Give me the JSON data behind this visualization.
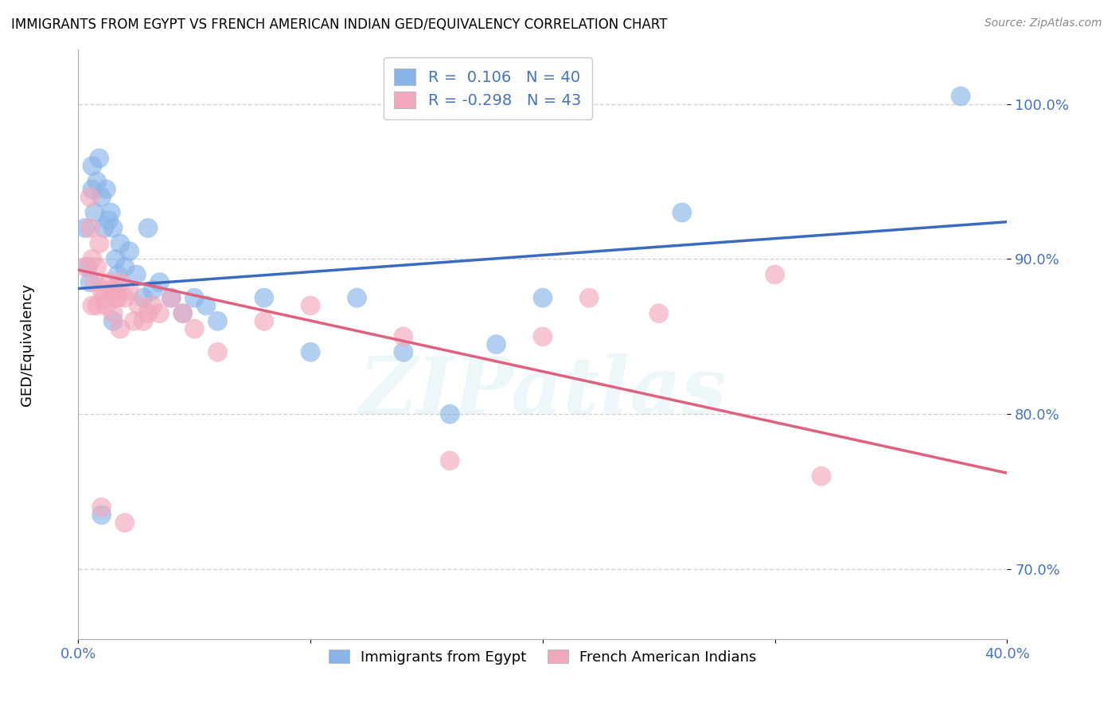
{
  "title": "IMMIGRANTS FROM EGYPT VS FRENCH AMERICAN INDIAN GED/EQUIVALENCY CORRELATION CHART",
  "source": "Source: ZipAtlas.com",
  "ylabel": "GED/Equivalency",
  "xlim": [
    0.0,
    0.4
  ],
  "ylim": [
    0.655,
    1.035
  ],
  "yticks": [
    0.7,
    0.8,
    0.9,
    1.0
  ],
  "yticklabels": [
    "70.0%",
    "80.0%",
    "90.0%",
    "100.0%"
  ],
  "blue_color": "#89b4e8",
  "pink_color": "#f2a8bc",
  "blue_line_color": "#3b6abf",
  "pink_line_color": "#e06080",
  "legend_r_blue": "0.106",
  "legend_n_blue": "40",
  "legend_r_pink": "-0.298",
  "legend_n_pink": "43",
  "legend_label_blue": "Immigrants from Egypt",
  "legend_label_pink": "French American Indians",
  "blue_scatter_x": [
    0.003,
    0.004,
    0.006,
    0.007,
    0.008,
    0.009,
    0.01,
    0.011,
    0.012,
    0.013,
    0.014,
    0.015,
    0.016,
    0.017,
    0.018,
    0.02,
    0.022,
    0.025,
    0.028,
    0.03,
    0.032,
    0.035,
    0.04,
    0.045,
    0.05,
    0.055,
    0.06,
    0.08,
    0.1,
    0.12,
    0.14,
    0.16,
    0.18,
    0.2,
    0.26,
    0.005,
    0.01,
    0.015,
    0.38,
    0.006
  ],
  "blue_scatter_y": [
    0.92,
    0.895,
    0.945,
    0.93,
    0.95,
    0.965,
    0.94,
    0.92,
    0.945,
    0.925,
    0.93,
    0.92,
    0.9,
    0.89,
    0.91,
    0.895,
    0.905,
    0.89,
    0.875,
    0.92,
    0.88,
    0.885,
    0.875,
    0.865,
    0.875,
    0.87,
    0.86,
    0.875,
    0.84,
    0.875,
    0.84,
    0.8,
    0.845,
    0.875,
    0.93,
    0.885,
    0.735,
    0.86,
    1.005,
    0.96
  ],
  "pink_scatter_x": [
    0.003,
    0.005,
    0.006,
    0.007,
    0.008,
    0.009,
    0.01,
    0.011,
    0.012,
    0.013,
    0.014,
    0.015,
    0.016,
    0.017,
    0.018,
    0.02,
    0.022,
    0.024,
    0.026,
    0.028,
    0.03,
    0.032,
    0.035,
    0.04,
    0.045,
    0.05,
    0.06,
    0.08,
    0.1,
    0.14,
    0.16,
    0.2,
    0.22,
    0.25,
    0.3,
    0.32,
    0.005,
    0.01,
    0.015,
    0.018,
    0.008,
    0.006,
    0.02
  ],
  "pink_scatter_y": [
    0.895,
    0.92,
    0.9,
    0.885,
    0.895,
    0.91,
    0.88,
    0.875,
    0.87,
    0.885,
    0.88,
    0.865,
    0.875,
    0.875,
    0.885,
    0.875,
    0.88,
    0.86,
    0.87,
    0.86,
    0.865,
    0.87,
    0.865,
    0.875,
    0.865,
    0.855,
    0.84,
    0.86,
    0.87,
    0.85,
    0.77,
    0.85,
    0.875,
    0.865,
    0.89,
    0.76,
    0.94,
    0.74,
    0.88,
    0.855,
    0.87,
    0.87,
    0.73
  ],
  "background_color": "#ffffff",
  "grid_color": "#cccccc"
}
